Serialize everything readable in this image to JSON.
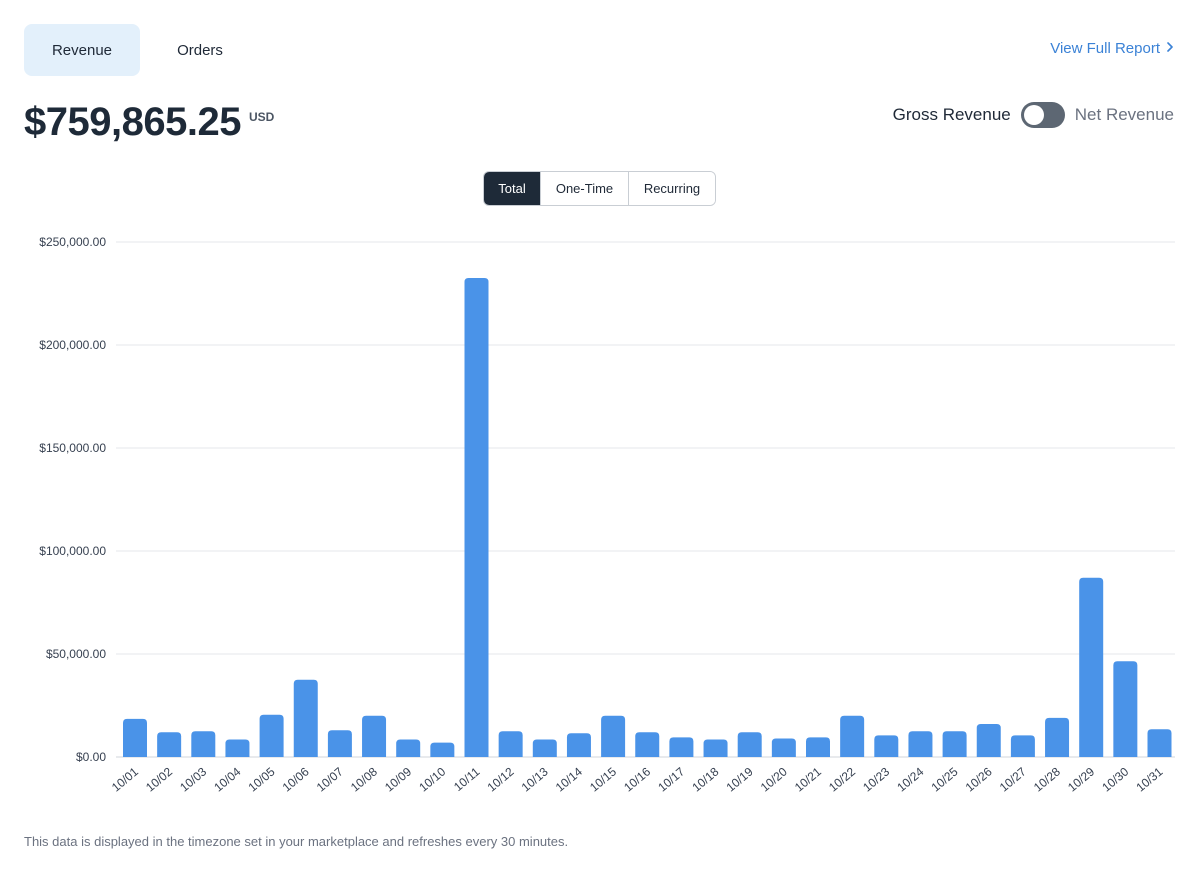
{
  "tabs": [
    {
      "label": "Revenue"
    },
    {
      "label": "Orders"
    }
  ],
  "report_link": {
    "label": "View Full Report",
    "icon": "chevron-right-icon"
  },
  "amount": {
    "value": "$759,865.25",
    "currency": "USD"
  },
  "toggle": {
    "left_label": "Gross Revenue",
    "right_label": "Net Revenue"
  },
  "segments": [
    {
      "label": "Total"
    },
    {
      "label": "One-Time"
    },
    {
      "label": "Recurring"
    }
  ],
  "footnote": "This data is displayed in the timezone set in your marketplace and refreshes every 30 minutes.",
  "colors": {
    "bar": "#4a93e8",
    "grid": "#e5e7eb",
    "accent": "#3b82d6"
  },
  "chart_data": {
    "type": "bar",
    "title": "",
    "xlabel": "",
    "ylabel": "",
    "ylim": [
      0,
      250000
    ],
    "yticks": [
      {
        "value": 0,
        "label": "$0.00"
      },
      {
        "value": 50000,
        "label": "$50,000.00"
      },
      {
        "value": 100000,
        "label": "$100,000.00"
      },
      {
        "value": 150000,
        "label": "$150,000.00"
      },
      {
        "value": 200000,
        "label": "$200,000.00"
      },
      {
        "value": 250000,
        "label": "$250,000.00"
      }
    ],
    "categories": [
      "10/01",
      "10/02",
      "10/03",
      "10/04",
      "10/05",
      "10/06",
      "10/07",
      "10/08",
      "10/09",
      "10/10",
      "10/11",
      "10/12",
      "10/13",
      "10/14",
      "10/15",
      "10/16",
      "10/17",
      "10/18",
      "10/19",
      "10/20",
      "10/21",
      "10/22",
      "10/23",
      "10/24",
      "10/25",
      "10/26",
      "10/27",
      "10/28",
      "10/29",
      "10/30",
      "10/31"
    ],
    "values": [
      18500,
      12000,
      12500,
      8500,
      20500,
      37500,
      13000,
      20000,
      8500,
      7000,
      232500,
      12500,
      8500,
      11500,
      20000,
      12000,
      9500,
      8500,
      12000,
      9000,
      9500,
      20000,
      10500,
      12500,
      12500,
      16000,
      10500,
      19000,
      87000,
      46500,
      13500
    ],
    "grid": true
  }
}
